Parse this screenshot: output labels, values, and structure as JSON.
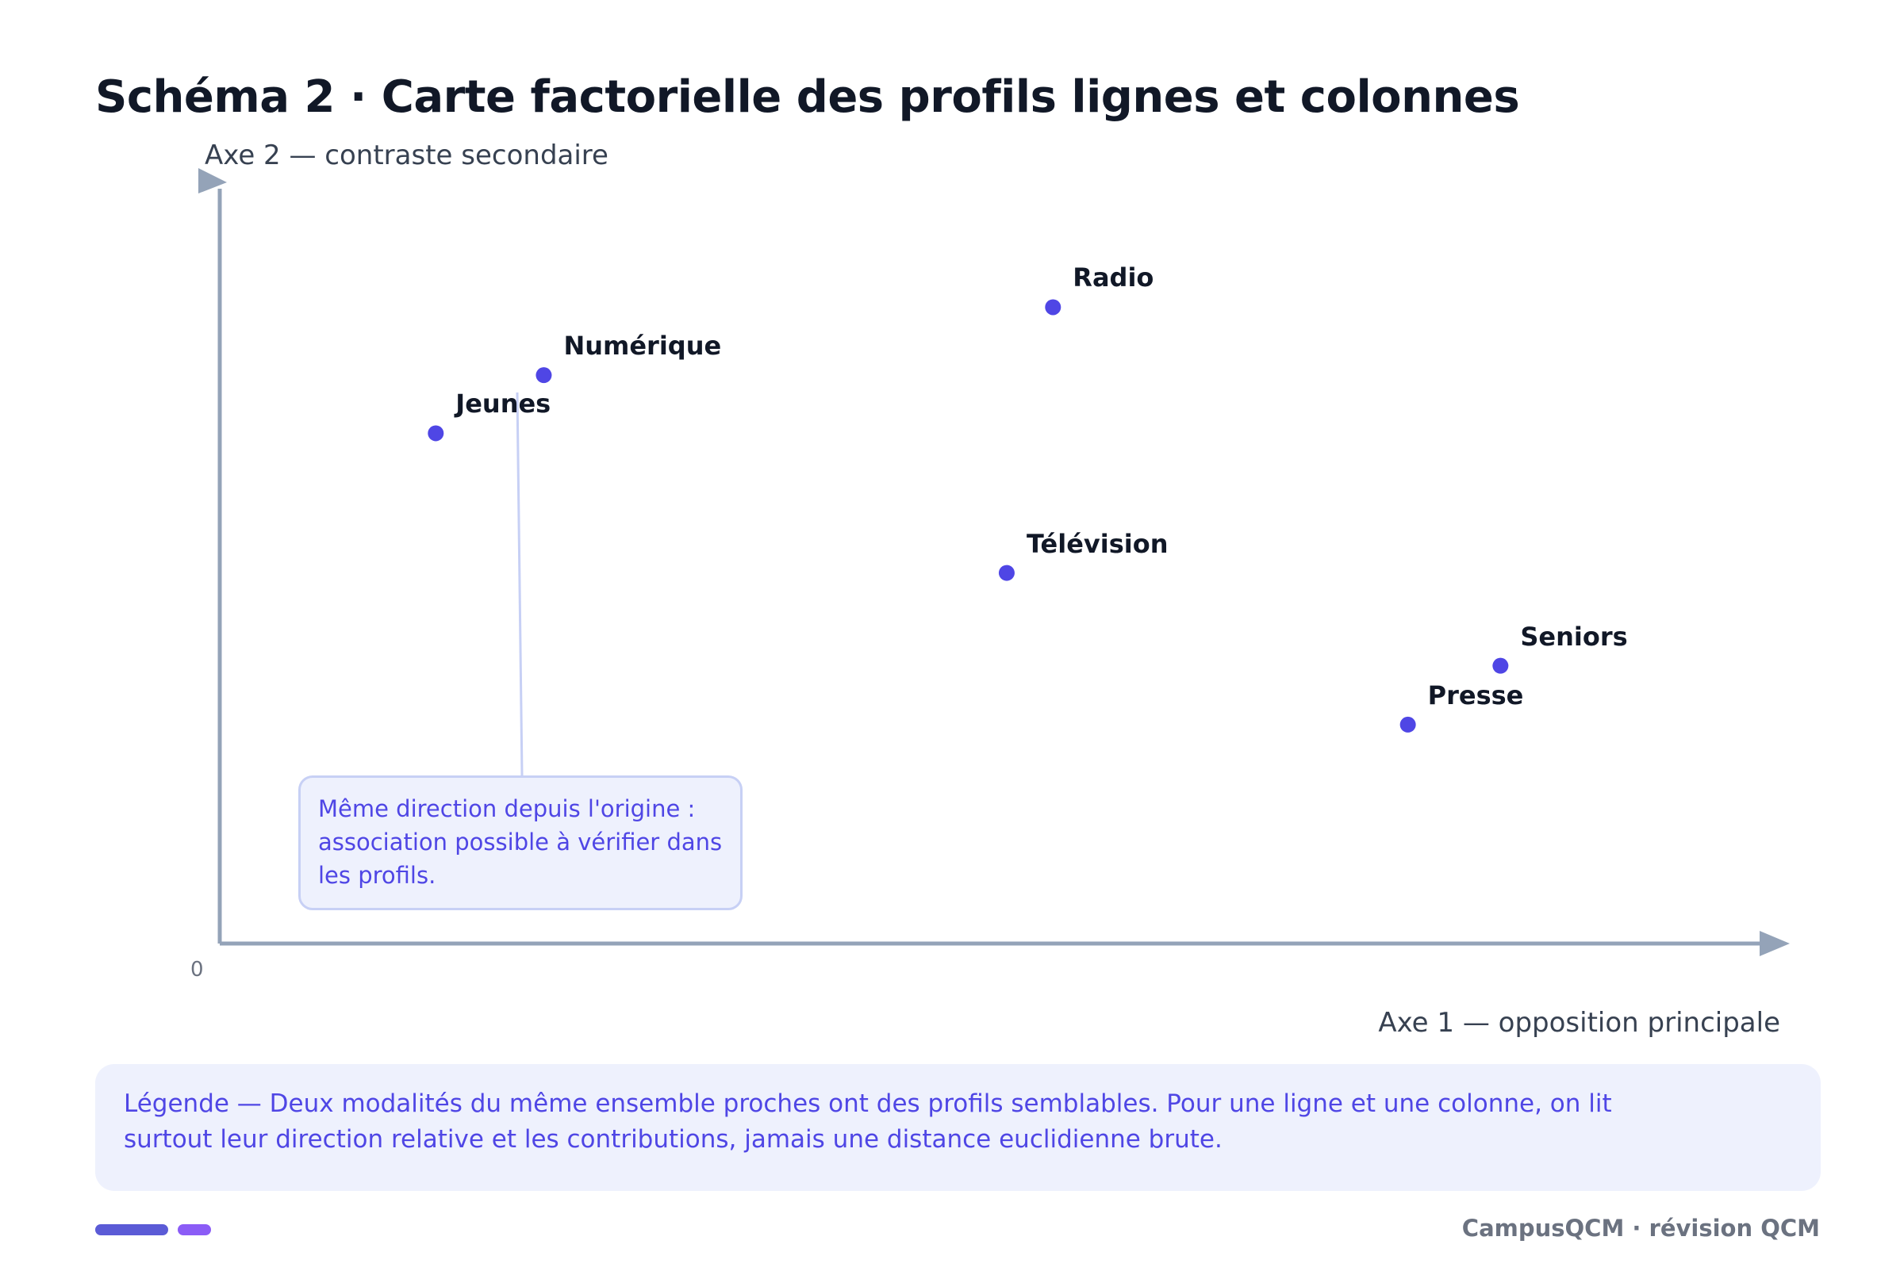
{
  "title": "Schéma 2 · Carte factorielle des profils lignes et colonnes",
  "axes": {
    "y_label": "Axe 2 — contraste secondaire",
    "x_label": "Axe 1 — opposition principale",
    "origin": "0"
  },
  "points": [
    {
      "name": "Radio",
      "x": 0.54,
      "y": 0.843
    },
    {
      "name": "Numérique",
      "x": 0.21,
      "y": 0.753
    },
    {
      "name": "Jeunes",
      "x": 0.14,
      "y": 0.676
    },
    {
      "name": "Télévision",
      "x": 0.51,
      "y": 0.491
    },
    {
      "name": "Seniors",
      "x": 0.83,
      "y": 0.368
    },
    {
      "name": "Presse",
      "x": 0.77,
      "y": 0.29
    }
  ],
  "callout": {
    "text": "Même direction depuis l'origine : association possible à vérifier dans les profils."
  },
  "legend": {
    "text": "Légende — Deux modalités du même ensemble proches ont des profils semblables. Pour une ligne et une colonne, on lit surtout leur direction relative et les contributions, jamais une distance euclidienne brute."
  },
  "footer": "CampusQCM · révision QCM",
  "colors": {
    "point": "#4f46e5",
    "axis": "#94a3b8",
    "callout_line": "#c7d0f5"
  }
}
